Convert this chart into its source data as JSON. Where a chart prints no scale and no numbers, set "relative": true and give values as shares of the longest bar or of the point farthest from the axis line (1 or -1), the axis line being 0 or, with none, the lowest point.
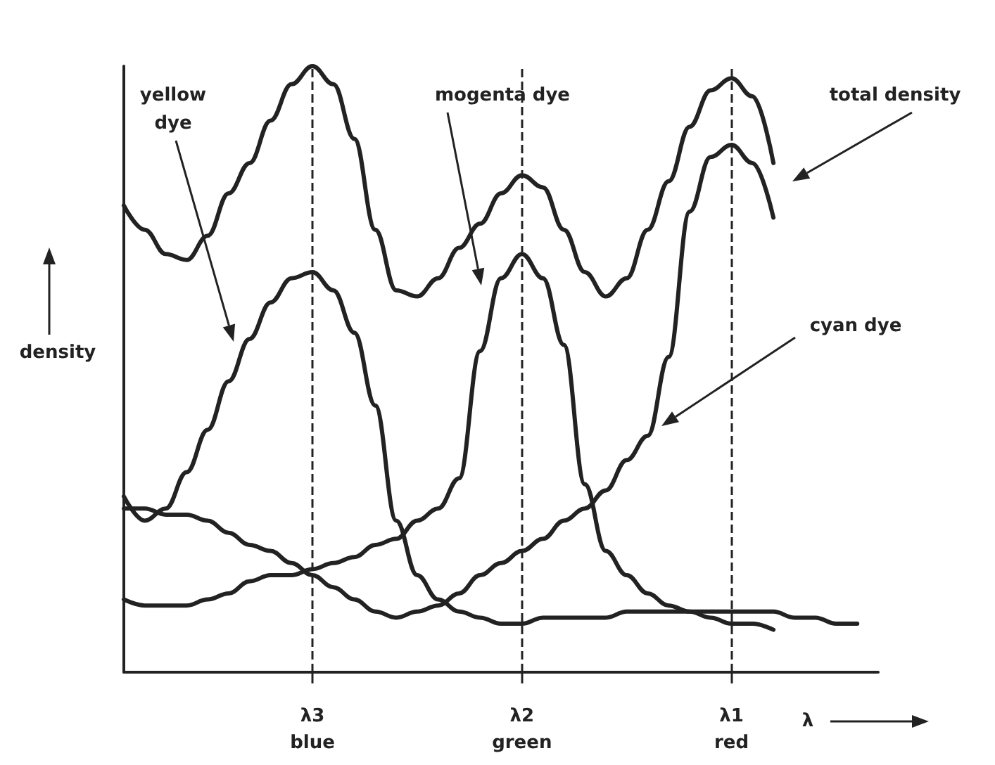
{
  "chart_data": {
    "type": "line",
    "relative": true,
    "xlabel": "λ",
    "ylabel": "density",
    "categories": [
      null,
      null,
      null,
      null,
      null,
      null,
      null,
      null,
      null,
      "λ3\nblue",
      null,
      null,
      null,
      null,
      null,
      null,
      null,
      null,
      null,
      "λ2\ngreen",
      null,
      null,
      null,
      null,
      null,
      null,
      null,
      null,
      null,
      "λ1\nred",
      null,
      null,
      null,
      null,
      null,
      null,
      null
    ],
    "series": [
      {
        "color": "#222222",
        "values": [
          0.77,
          0.73,
          0.69,
          0.68,
          0.72,
          0.79,
          0.84,
          0.91,
          0.97,
          1.0,
          0.97,
          0.88,
          0.73,
          0.63,
          0.62,
          0.65,
          0.7,
          0.74,
          0.79,
          0.82,
          0.8,
          0.73,
          0.66,
          0.62,
          0.65,
          0.73,
          0.81,
          0.9,
          0.96,
          0.98,
          0.95,
          0.84,
          null,
          null,
          null,
          null,
          null
        ]
      },
      {
        "color": "#222222",
        "values": [
          0.29,
          0.25,
          0.27,
          0.33,
          0.4,
          0.48,
          0.55,
          0.61,
          0.65,
          0.66,
          0.63,
          0.56,
          0.44,
          0.25,
          0.16,
          0.12,
          0.1,
          0.09,
          0.08,
          0.08,
          0.09,
          0.09,
          0.09,
          0.09,
          0.1,
          0.1,
          0.1,
          0.1,
          0.1,
          0.1,
          0.1,
          0.1,
          0.09,
          0.09,
          0.08,
          0.08,
          null
        ]
      },
      {
        "color": "#222222",
        "values": [
          0.12,
          0.11,
          0.11,
          0.11,
          0.12,
          0.13,
          0.15,
          0.16,
          0.16,
          0.17,
          0.18,
          0.19,
          0.21,
          0.22,
          0.25,
          0.27,
          0.32,
          0.53,
          0.65,
          0.69,
          0.65,
          0.54,
          0.31,
          0.2,
          0.16,
          0.13,
          0.11,
          0.1,
          0.09,
          0.08,
          0.08,
          0.07,
          null,
          null,
          null,
          null,
          null
        ]
      },
      {
        "color": "#222222",
        "values": [
          0.27,
          0.27,
          0.26,
          0.26,
          0.25,
          0.23,
          0.21,
          0.2,
          0.18,
          0.16,
          0.14,
          0.12,
          0.1,
          0.09,
          0.1,
          0.11,
          0.13,
          0.16,
          0.18,
          0.2,
          0.22,
          0.25,
          0.27,
          0.3,
          0.35,
          0.39,
          0.52,
          0.76,
          0.85,
          0.87,
          0.84,
          0.75,
          null,
          null,
          null,
          null,
          null
        ]
      }
    ],
    "ref_lines": [
      {
        "axis": "x",
        "value": "λ3\nblue",
        "line_style": "dashed"
      },
      {
        "axis": "x",
        "value": "λ2\ngreen",
        "line_style": "dashed"
      },
      {
        "axis": "x",
        "value": "λ1\nred",
        "line_style": "dashed"
      }
    ],
    "annotations": [
      "yellow\ndye",
      "mogenta dye",
      "cyan dye",
      "total density"
    ],
    "marker": "none",
    "line_style": "solid",
    "grid": false
  }
}
